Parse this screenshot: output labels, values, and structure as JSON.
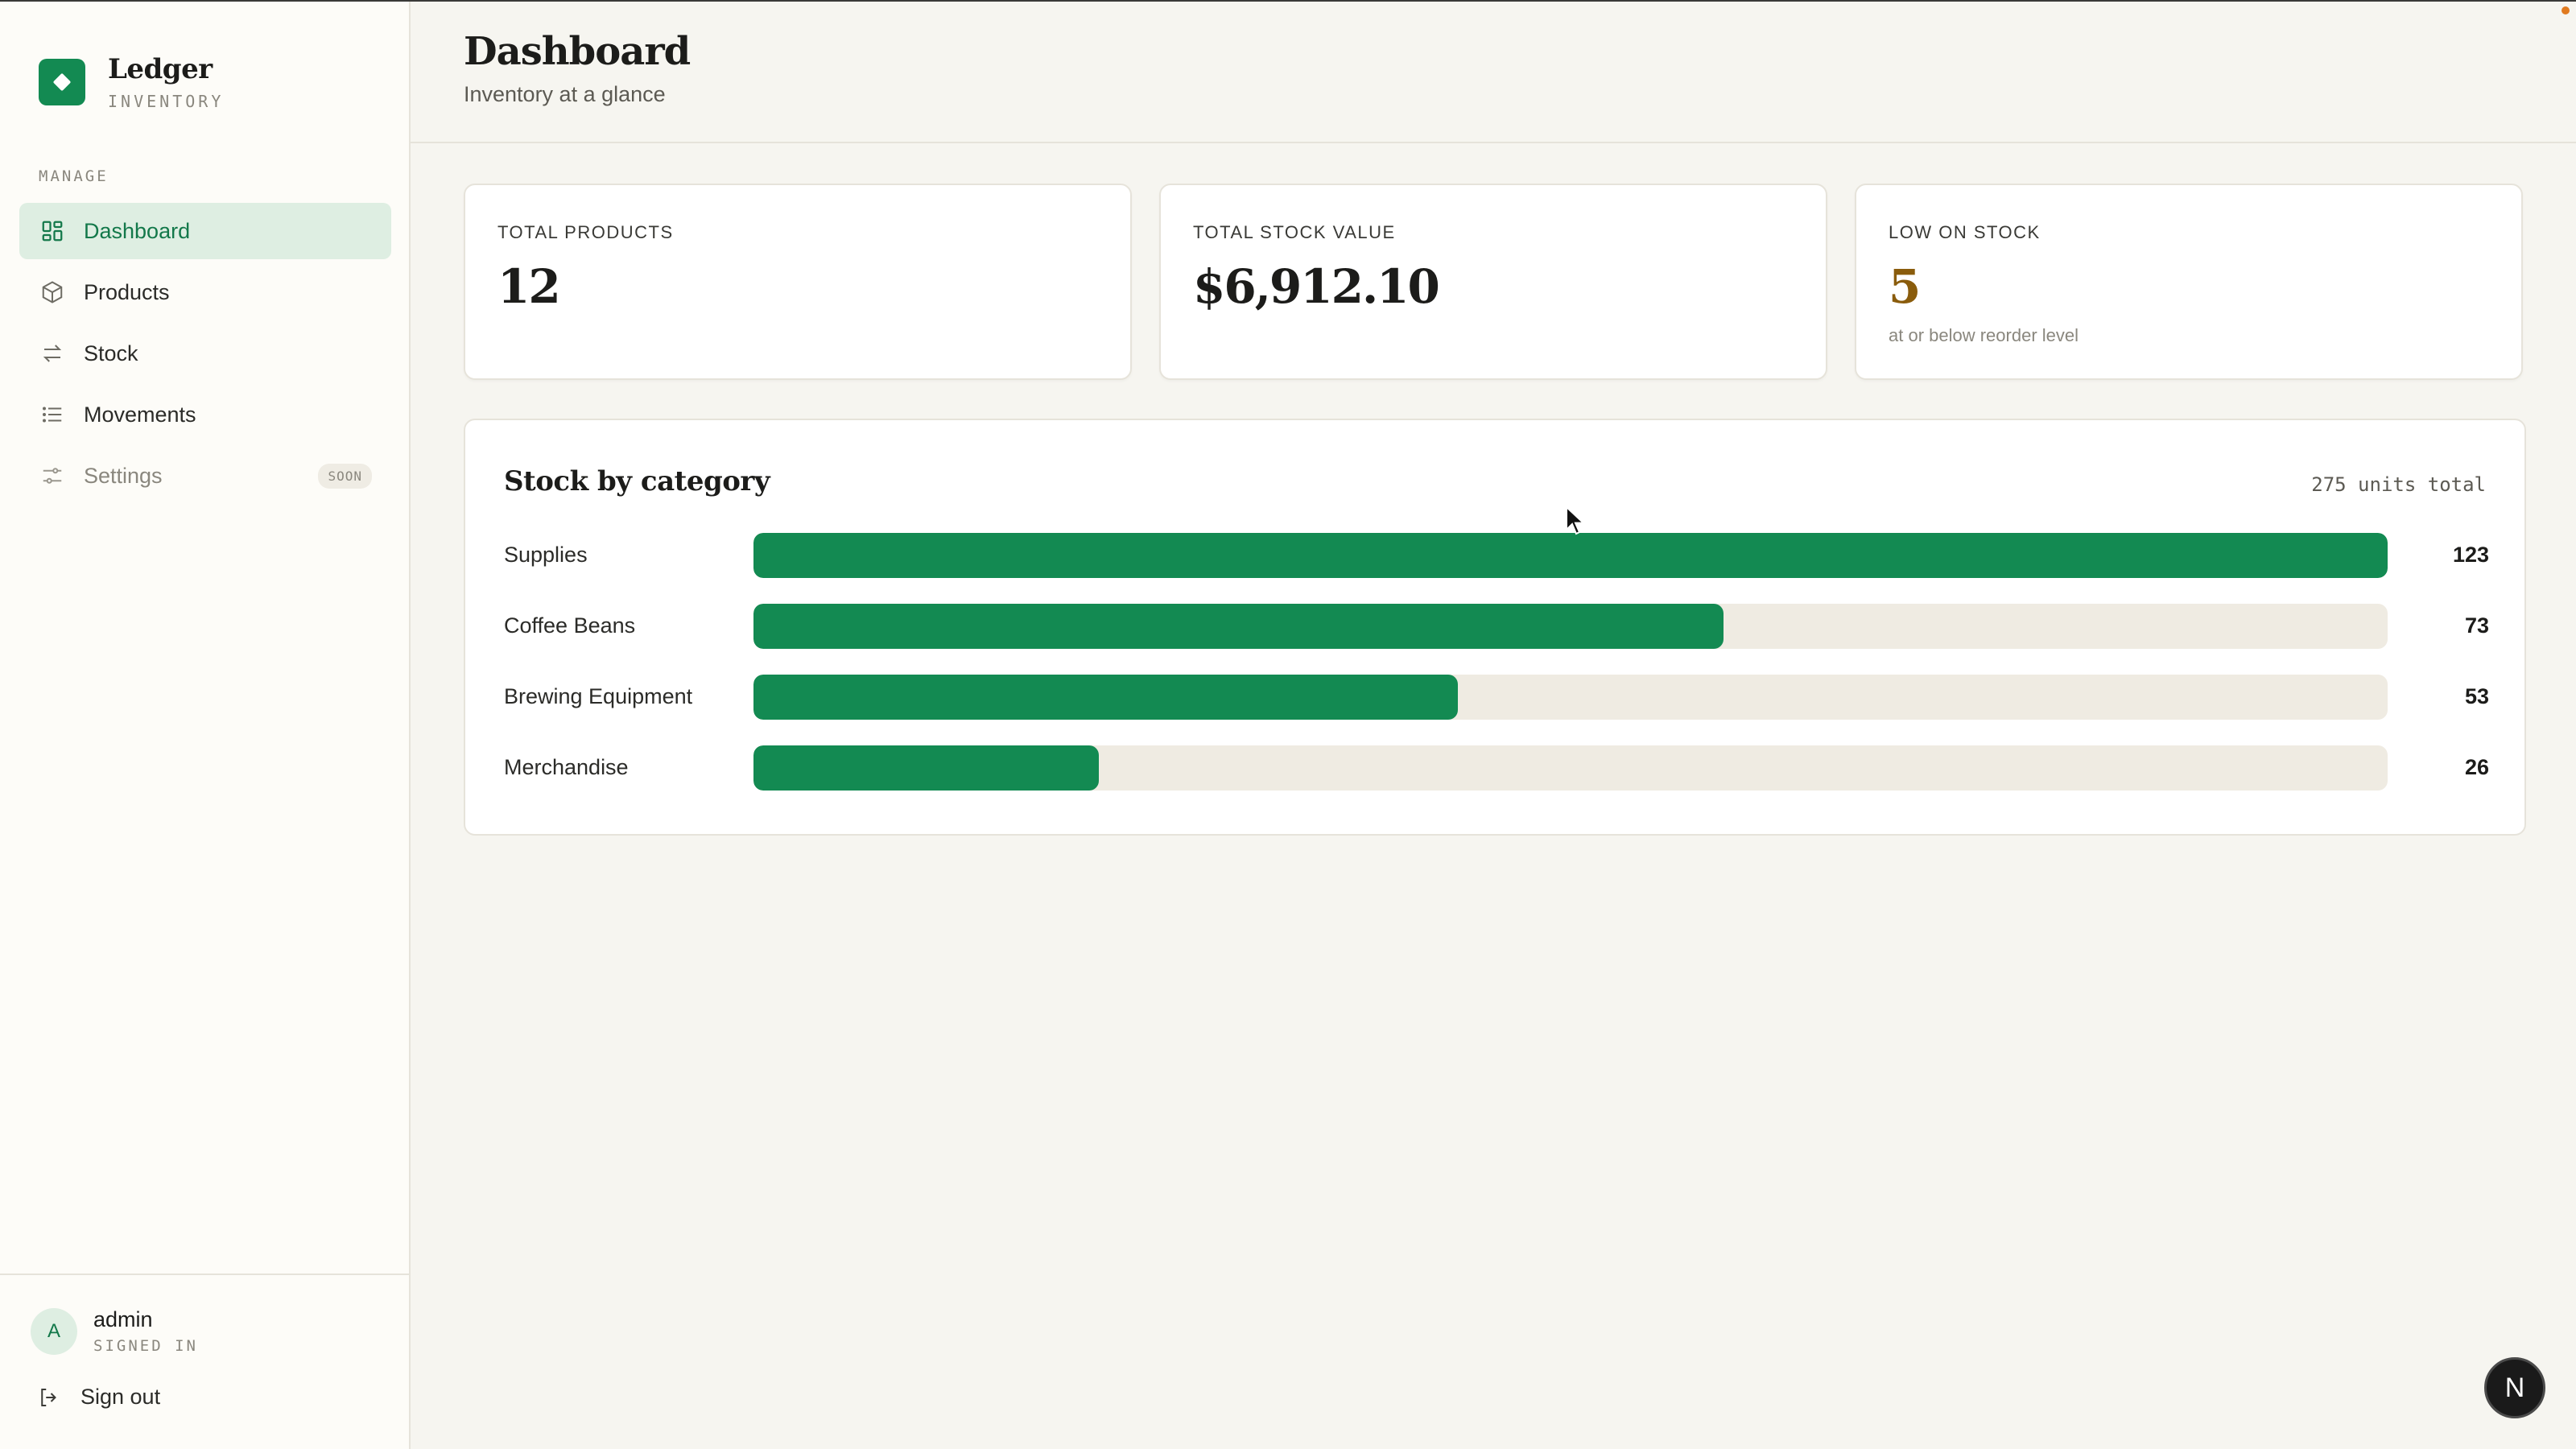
{
  "brand": {
    "name": "Ledger",
    "subtitle": "INVENTORY"
  },
  "sidebar": {
    "section_label": "MANAGE",
    "items": [
      {
        "label": "Dashboard",
        "icon": "grid-icon",
        "active": true
      },
      {
        "label": "Products",
        "icon": "box-icon"
      },
      {
        "label": "Stock",
        "icon": "arrows-swap-icon"
      },
      {
        "label": "Movements",
        "icon": "list-icon"
      },
      {
        "label": "Settings",
        "icon": "sliders-icon",
        "badge": "SOON",
        "disabled": true
      }
    ]
  },
  "user": {
    "initial": "A",
    "name": "admin",
    "status": "SIGNED IN",
    "signout_label": "Sign out"
  },
  "header": {
    "title": "Dashboard",
    "subtitle": "Inventory at a glance"
  },
  "cards": [
    {
      "label": "TOTAL PRODUCTS",
      "value": "12"
    },
    {
      "label": "TOTAL STOCK VALUE",
      "value": "$6,912.10"
    },
    {
      "label": "LOW ON STOCK",
      "value": "5",
      "note": "at or below reorder level"
    }
  ],
  "stock_panel": {
    "title": "Stock by category",
    "total": "275 units total"
  },
  "chart_data": {
    "type": "bar",
    "orientation": "horizontal",
    "title": "Stock by category",
    "categories": [
      "Supplies",
      "Coffee Beans",
      "Brewing Equipment",
      "Merchandise"
    ],
    "values": [
      123,
      73,
      53,
      26
    ],
    "xlim": [
      0,
      123
    ]
  },
  "colors": {
    "accent": "#138a52",
    "warn": "#8a5c0c",
    "track": "#efebe2",
    "background": "#f6f5f0"
  },
  "misc": {
    "n_badge": "N"
  }
}
